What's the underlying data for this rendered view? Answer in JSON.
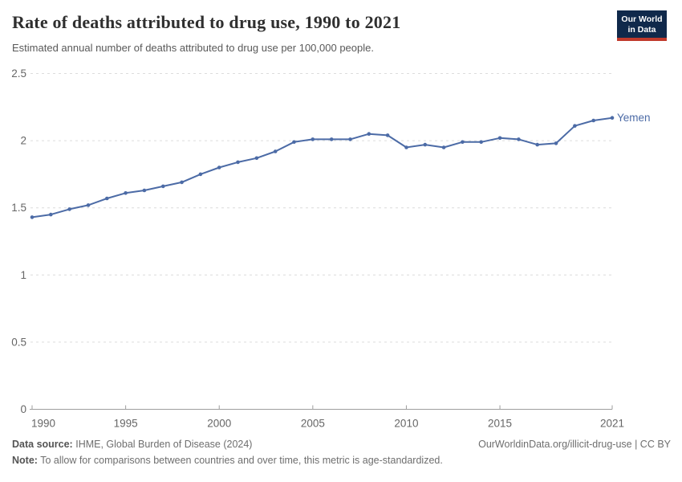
{
  "header": {
    "title": "Rate of deaths attributed to drug use, 1990 to 2021",
    "subtitle": "Estimated annual number of deaths attributed to drug use per 100,000 people.",
    "logo": {
      "line1": "Our World",
      "line2": "in Data"
    }
  },
  "chart_data": {
    "type": "line",
    "title": "Rate of deaths attributed to drug use, 1990 to 2021",
    "xlabel": "",
    "ylabel": "",
    "xlim": [
      1990,
      2021
    ],
    "ylim": [
      0,
      2.5
    ],
    "x_ticks": [
      1990,
      1995,
      2000,
      2005,
      2010,
      2015,
      2021
    ],
    "y_ticks": [
      0,
      0.5,
      1,
      1.5,
      2,
      2.5
    ],
    "grid": "horizontal-dashed",
    "legend_position": "end-of-line-label",
    "x": [
      1990,
      1991,
      1992,
      1993,
      1994,
      1995,
      1996,
      1997,
      1998,
      1999,
      2000,
      2001,
      2002,
      2003,
      2004,
      2005,
      2006,
      2007,
      2008,
      2009,
      2010,
      2011,
      2012,
      2013,
      2014,
      2015,
      2016,
      2017,
      2018,
      2019,
      2020,
      2021
    ],
    "series": [
      {
        "name": "Yemen",
        "color": "#4c6ba6",
        "values": [
          1.43,
          1.45,
          1.49,
          1.52,
          1.57,
          1.61,
          1.63,
          1.66,
          1.69,
          1.75,
          1.8,
          1.84,
          1.87,
          1.92,
          1.99,
          2.01,
          2.01,
          2.01,
          2.05,
          2.04,
          1.95,
          1.97,
          1.95,
          1.99,
          1.99,
          2.02,
          2.01,
          1.97,
          1.98,
          2.11,
          2.15,
          2.17
        ]
      }
    ]
  },
  "footer": {
    "datasource_label": "Data source:",
    "datasource": "IHME, Global Burden of Disease (2024)",
    "attribution": "OurWorldinData.org/illicit-drug-use | CC BY",
    "note_label": "Note:",
    "note": "To allow for comparisons between countries and over time, this metric is age-standardized."
  },
  "colors": {
    "line": "#4c6ba6",
    "grid": "#dcdcdc",
    "axis": "#9e9e9e",
    "tick_label": "#666666"
  }
}
